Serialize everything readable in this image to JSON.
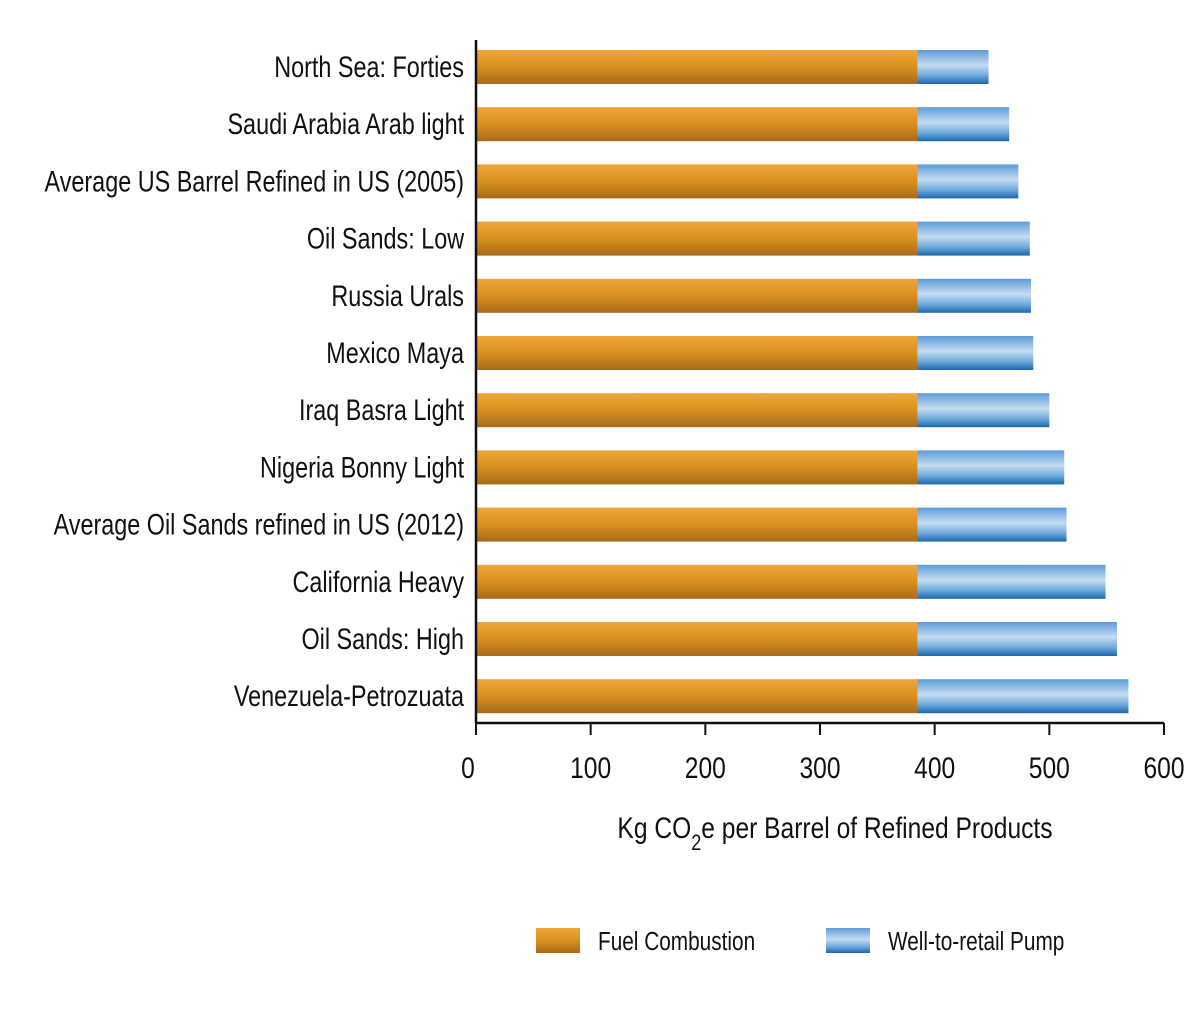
{
  "chart_data": {
    "type": "bar",
    "orientation": "horizontal",
    "stacked": true,
    "categories": [
      "North Sea: Forties",
      "Saudi Arabia Arab light",
      "Average US Barrel Refined in US (2005)",
      "Oil Sands: Low",
      "Russia Urals",
      "Mexico Maya",
      "Iraq Basra Light",
      "Nigeria Bonny Light",
      "Average Oil Sands refined in US (2012)",
      "California Heavy",
      "Oil Sands: High",
      "Venezuela-Petrozuata"
    ],
    "series": [
      {
        "name": "Fuel Combustion",
        "color": "#d28a22",
        "values": [
          385,
          385,
          385,
          385,
          385,
          385,
          385,
          385,
          385,
          385,
          385,
          385
        ]
      },
      {
        "name": "Well-to-retail Pump",
        "color": "#4d8fd1",
        "values": [
          62,
          80,
          88,
          98,
          99,
          101,
          115,
          128,
          130,
          164,
          174,
          184
        ]
      }
    ],
    "xticks": [
      "0",
      "100",
      "200",
      "300",
      "400",
      "500",
      "600"
    ],
    "xlim": [
      0,
      600
    ],
    "xlabel": {
      "prefix": "Kg CO",
      "subscript": "2",
      "suffix": "e per Barrel of Refined Products"
    },
    "ylabel": "",
    "title": "",
    "grid": false,
    "legend_position": "bottom-center"
  }
}
